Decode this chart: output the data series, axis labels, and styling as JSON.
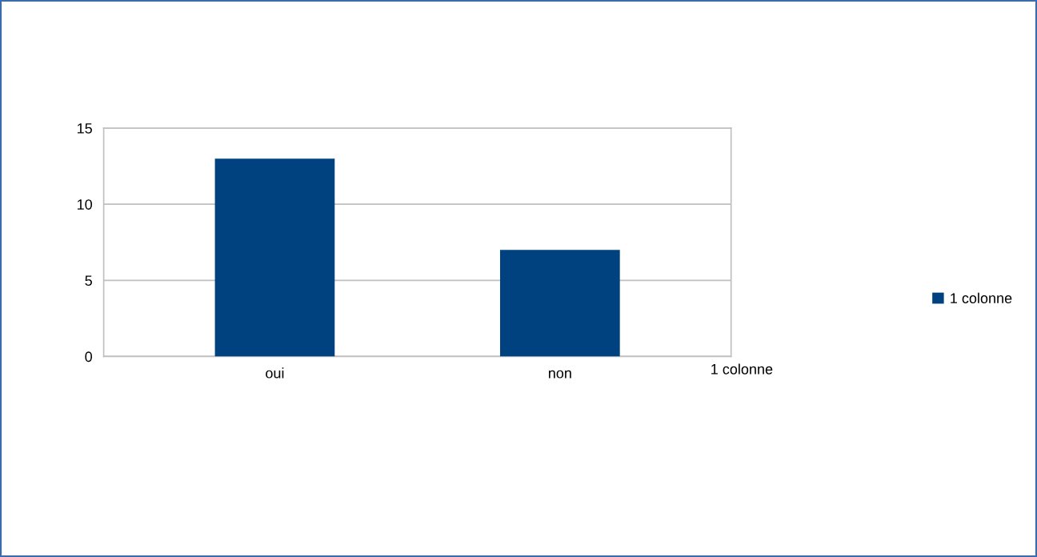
{
  "chart_data": {
    "type": "bar",
    "categories": [
      "oui",
      "non"
    ],
    "series": [
      {
        "name": "1 colonne",
        "color": "#00427f",
        "values": [
          13,
          7
        ]
      }
    ],
    "ylim": [
      0,
      15
    ],
    "yticks": [
      0,
      5,
      10,
      15
    ],
    "grid": "y",
    "legend": "right",
    "annotations": [
      "1 colonne"
    ]
  }
}
